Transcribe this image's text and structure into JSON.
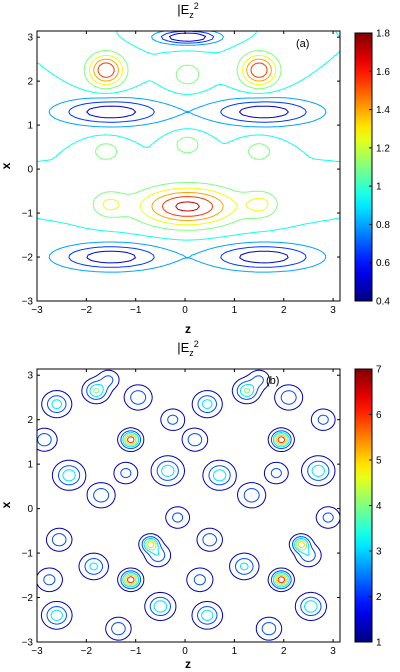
{
  "chart_data": [
    {
      "type": "contour",
      "title_base": "|E",
      "title_sub": "z",
      "title_sup": "2",
      "panel_label": "(a)",
      "xlabel": "z",
      "ylabel": "x",
      "xlim": [
        -3,
        3.14
      ],
      "ylim": [
        -3,
        3.14
      ],
      "xticks": [
        -3,
        -2,
        -1,
        0,
        1,
        2,
        3
      ],
      "yticks": [
        -3,
        -2,
        -1,
        0,
        1,
        2,
        3
      ],
      "levels": [
        0.5,
        0.65,
        0.8,
        0.95,
        1.1,
        1.25,
        1.4,
        1.55,
        1.7
      ],
      "colorbar": {
        "min": 0.4,
        "max": 1.8,
        "ticks": [
          0.4,
          0.6,
          0.8,
          1,
          1.2,
          1.4,
          1.6,
          1.8
        ]
      },
      "features": [
        {
          "kind": "max",
          "z": 0.05,
          "x": -0.85,
          "peak": 1.75,
          "width_z": 0.95,
          "width_x": 0.42
        },
        {
          "kind": "max",
          "z": -1.6,
          "x": 2.25,
          "peak": 1.7,
          "width_z": 0.35,
          "width_x": 0.35
        },
        {
          "kind": "max",
          "z": 1.5,
          "x": 2.25,
          "peak": 1.7,
          "width_z": 0.35,
          "width_x": 0.35
        },
        {
          "kind": "max",
          "z": 0.05,
          "x": 2.15,
          "peak": 1.2,
          "width_z": 0.32,
          "width_x": 0.3
        },
        {
          "kind": "max",
          "z": -1.55,
          "x": -0.8,
          "peak": 1.25,
          "width_z": 0.35,
          "width_x": 0.3
        },
        {
          "kind": "max",
          "z": 1.55,
          "x": -0.8,
          "peak": 1.25,
          "width_z": 0.35,
          "width_x": 0.3
        },
        {
          "kind": "max",
          "z": 0.05,
          "x": 0.55,
          "peak": 1.2,
          "width_z": 0.3,
          "width_x": 0.25
        },
        {
          "kind": "max",
          "z": -1.6,
          "x": 0.4,
          "peak": 1.2,
          "width_z": 0.3,
          "width_x": 0.25
        },
        {
          "kind": "max",
          "z": 1.5,
          "x": 0.4,
          "peak": 1.2,
          "width_z": 0.3,
          "width_x": 0.25
        },
        {
          "kind": "min",
          "z": -1.5,
          "x": 1.3,
          "depth": 0.45,
          "width_z": 1.1,
          "width_x": 0.3
        },
        {
          "kind": "min",
          "z": 1.6,
          "x": 1.3,
          "depth": 0.45,
          "width_z": 1.1,
          "width_x": 0.3
        },
        {
          "kind": "min",
          "z": -1.5,
          "x": -2.0,
          "depth": 0.45,
          "width_z": 1.1,
          "width_x": 0.3
        },
        {
          "kind": "min",
          "z": 1.6,
          "x": -2.0,
          "depth": 0.45,
          "width_z": 1.1,
          "width_x": 0.3
        },
        {
          "kind": "min",
          "z": 0.05,
          "x": 3.0,
          "depth": 0.35,
          "width_z": 0.6,
          "width_x": 0.15
        }
      ]
    },
    {
      "type": "contour",
      "title_base": "|E",
      "title_sub": "z",
      "title_sup": "2",
      "panel_label": "(b)",
      "xlabel": "z",
      "ylabel": "x",
      "xlim": [
        -3,
        3.14
      ],
      "ylim": [
        -3,
        3.14
      ],
      "xticks": [
        -3,
        -2,
        -1,
        0,
        1,
        2,
        3
      ],
      "yticks": [
        -3,
        -2,
        -1,
        0,
        1,
        2,
        3
      ],
      "levels": [
        1.3,
        2.2,
        3.1,
        4.0,
        5.0,
        6.0
      ],
      "colorbar": {
        "min": 1,
        "max": 7,
        "ticks": [
          1,
          2,
          3,
          4,
          5,
          6,
          7
        ]
      },
      "features": [
        {
          "kind": "max",
          "z": -1.1,
          "x": 1.55,
          "peak": 7.0,
          "width": 0.16
        },
        {
          "kind": "max",
          "z": 1.95,
          "x": 1.55,
          "peak": 7.0,
          "width": 0.16
        },
        {
          "kind": "max",
          "z": -1.1,
          "x": -1.6,
          "peak": 7.0,
          "width": 0.16
        },
        {
          "kind": "max",
          "z": 1.95,
          "x": -1.6,
          "peak": 7.0,
          "width": 0.16
        },
        {
          "kind": "max",
          "z": -0.7,
          "x": -0.8,
          "peak": 5.5,
          "width": 0.15
        },
        {
          "kind": "max",
          "z": 2.35,
          "x": -0.8,
          "peak": 5.5,
          "width": 0.15
        },
        {
          "kind": "max",
          "z": -1.8,
          "x": 2.65,
          "peak": 4.2,
          "width": 0.2
        },
        {
          "kind": "max",
          "z": 1.25,
          "x": 2.65,
          "peak": 4.2,
          "width": 0.2
        },
        {
          "kind": "max",
          "z": -2.6,
          "x": 2.35,
          "peak": 3.6,
          "width": 0.22
        },
        {
          "kind": "max",
          "z": 0.45,
          "x": 2.35,
          "peak": 3.6,
          "width": 0.22
        },
        {
          "kind": "max",
          "z": -0.95,
          "x": 2.5,
          "peak": 3.0,
          "width": 0.22
        },
        {
          "kind": "max",
          "z": 2.1,
          "x": 2.5,
          "peak": 3.0,
          "width": 0.22
        },
        {
          "kind": "max",
          "z": -2.85,
          "x": 1.55,
          "peak": 3.0,
          "width": 0.2
        },
        {
          "kind": "max",
          "z": 0.2,
          "x": 1.55,
          "peak": 3.0,
          "width": 0.2
        },
        {
          "kind": "max",
          "z": -2.35,
          "x": 0.75,
          "peak": 3.8,
          "width": 0.24
        },
        {
          "kind": "max",
          "z": 0.7,
          "x": 0.75,
          "peak": 3.8,
          "width": 0.24
        },
        {
          "kind": "max",
          "z": -0.35,
          "x": 0.85,
          "peak": 3.8,
          "width": 0.24
        },
        {
          "kind": "max",
          "z": 2.7,
          "x": 0.85,
          "peak": 3.8,
          "width": 0.24
        },
        {
          "kind": "max",
          "z": -1.7,
          "x": 0.3,
          "peak": 3.0,
          "width": 0.22
        },
        {
          "kind": "max",
          "z": 1.35,
          "x": 0.3,
          "peak": 3.0,
          "width": 0.22
        },
        {
          "kind": "max",
          "z": -2.55,
          "x": -0.7,
          "peak": 3.0,
          "width": 0.2
        },
        {
          "kind": "max",
          "z": 0.5,
          "x": -0.7,
          "peak": 3.0,
          "width": 0.2
        },
        {
          "kind": "max",
          "z": -1.85,
          "x": -1.3,
          "peak": 3.4,
          "width": 0.22
        },
        {
          "kind": "max",
          "z": 1.2,
          "x": -1.3,
          "peak": 3.4,
          "width": 0.22
        },
        {
          "kind": "max",
          "z": -2.6,
          "x": -2.4,
          "peak": 3.8,
          "width": 0.22
        },
        {
          "kind": "max",
          "z": 0.45,
          "x": -2.4,
          "peak": 3.8,
          "width": 0.22
        },
        {
          "kind": "max",
          "z": -0.5,
          "x": -2.2,
          "peak": 4.0,
          "width": 0.22
        },
        {
          "kind": "max",
          "z": 2.55,
          "x": -2.2,
          "peak": 4.0,
          "width": 0.22
        },
        {
          "kind": "max",
          "z": -1.35,
          "x": -2.7,
          "peak": 3.0,
          "width": 0.2
        },
        {
          "kind": "max",
          "z": 1.7,
          "x": -2.7,
          "peak": 3.0,
          "width": 0.2
        },
        {
          "kind": "max",
          "z": -0.55,
          "x": -1.05,
          "peak": 3.0,
          "width": 0.2
        },
        {
          "kind": "max",
          "z": 2.5,
          "x": -1.05,
          "peak": 3.0,
          "width": 0.2
        },
        {
          "kind": "max",
          "z": -0.25,
          "x": 2.0,
          "peak": 2.6,
          "width": 0.2
        },
        {
          "kind": "max",
          "z": 2.8,
          "x": 2.0,
          "peak": 2.6,
          "width": 0.2
        },
        {
          "kind": "max",
          "z": -1.2,
          "x": 0.8,
          "peak": 2.6,
          "width": 0.2
        },
        {
          "kind": "max",
          "z": 1.85,
          "x": 0.8,
          "peak": 2.6,
          "width": 0.2
        },
        {
          "kind": "max",
          "z": 0.3,
          "x": -1.6,
          "peak": 2.6,
          "width": 0.22
        },
        {
          "kind": "max",
          "z": -2.75,
          "x": -1.6,
          "peak": 2.6,
          "width": 0.22
        },
        {
          "kind": "max",
          "z": -1.55,
          "x": 2.9,
          "peak": 2.5,
          "width": 0.18
        },
        {
          "kind": "max",
          "z": 1.5,
          "x": 2.9,
          "peak": 2.5,
          "width": 0.18
        },
        {
          "kind": "max",
          "z": -0.15,
          "x": -0.2,
          "peak": 2.6,
          "width": 0.2
        },
        {
          "kind": "max",
          "z": 2.9,
          "x": -0.2,
          "peak": 2.6,
          "width": 0.2
        }
      ]
    }
  ]
}
